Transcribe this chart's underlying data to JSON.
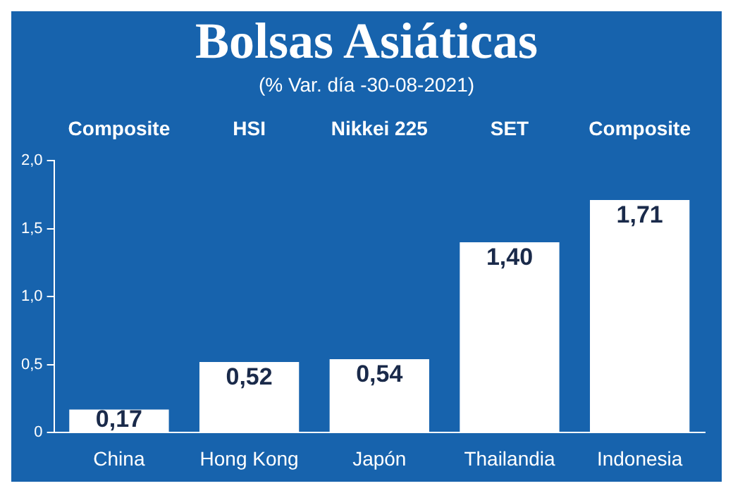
{
  "chart_data": {
    "type": "bar",
    "title": "Bolsas Asiáticas",
    "subtitle": "(% Var. día -30-08-2021)",
    "categories": [
      "China",
      "Hong Kong",
      "Japón",
      "Thailandia",
      "Indonesia"
    ],
    "values": [
      0.17,
      0.52,
      0.54,
      1.4,
      1.71
    ],
    "value_labels": [
      "0,17",
      "0,52",
      "0,54",
      "1,40",
      "1,71"
    ],
    "color": "#ffffff",
    "ylim": [
      0,
      2
    ],
    "yticks": [
      {
        "value": 0,
        "label": "0"
      },
      {
        "value": 0.5,
        "label": "0,5"
      },
      {
        "value": 1,
        "label": "1,0"
      },
      {
        "value": 1.5,
        "label": "1,5"
      },
      {
        "value": 2,
        "label": "2,0"
      }
    ],
    "annotations": [
      "Composite",
      "HSI",
      "Nikkei 225",
      "SET",
      "Composite"
    ],
    "grid": false,
    "legend": false
  }
}
